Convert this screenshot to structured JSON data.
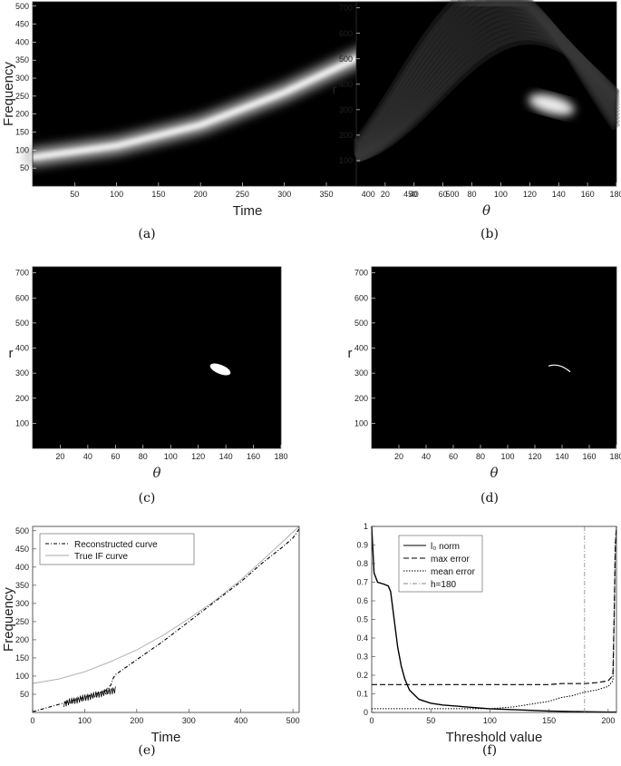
{
  "chart_data": [
    {
      "panel": "(a)",
      "type": "heatmap",
      "xlabel": "Time",
      "ylabel": "Frequency",
      "x_ticks": [
        50,
        100,
        150,
        200,
        250,
        300,
        350,
        400,
        450,
        500
      ],
      "y_ticks": [
        50,
        100,
        150,
        200,
        250,
        300,
        350,
        400,
        450,
        500
      ],
      "xlim": [
        0,
        512
      ],
      "ylim": [
        0,
        512
      ],
      "ridge": {
        "x": [
          0,
          100,
          200,
          300,
          400,
          512
        ],
        "y": [
          80,
          112,
          170,
          260,
          370,
          512
        ]
      },
      "colormap": "gray"
    },
    {
      "panel": "(b)",
      "type": "heatmap",
      "xlabel": "θ",
      "ylabel": "r",
      "x_ticks": [
        20,
        40,
        60,
        80,
        100,
        120,
        140,
        160,
        180
      ],
      "y_ticks": [
        100,
        200,
        300,
        400,
        500,
        600,
        700
      ],
      "xlim": [
        0,
        180
      ],
      "ylim": [
        0,
        724
      ],
      "peak": {
        "theta": 135,
        "r": 320
      },
      "colormap": "gray"
    },
    {
      "panel": "(c)",
      "type": "heatmap",
      "xlabel": "θ",
      "ylabel": "r",
      "x_ticks": [
        20,
        40,
        60,
        80,
        100,
        120,
        140,
        160,
        180
      ],
      "y_ticks": [
        100,
        200,
        300,
        400,
        500,
        600,
        700
      ],
      "xlim": [
        0,
        180
      ],
      "ylim": [
        0,
        724
      ],
      "blob": {
        "theta_range": [
          126,
          146
        ],
        "r_range": [
          300,
          330
        ]
      },
      "colormap": "gray"
    },
    {
      "panel": "(d)",
      "type": "heatmap",
      "xlabel": "θ",
      "ylabel": "r",
      "x_ticks": [
        20,
        40,
        60,
        80,
        100,
        120,
        140,
        160,
        180
      ],
      "y_ticks": [
        100,
        200,
        300,
        400,
        500,
        600,
        700
      ],
      "xlim": [
        0,
        180
      ],
      "ylim": [
        0,
        724
      ],
      "arc": {
        "theta_range": [
          130,
          146
        ],
        "r_range": [
          305,
          332
        ]
      },
      "colormap": "gray"
    },
    {
      "panel": "(e)",
      "type": "line",
      "xlabel": "Time",
      "ylabel": "Frequency",
      "x_ticks": [
        0,
        100,
        200,
        300,
        400,
        500
      ],
      "y_ticks": [
        50,
        100,
        150,
        200,
        250,
        300,
        350,
        400,
        450,
        500
      ],
      "xlim": [
        0,
        512
      ],
      "ylim": [
        0,
        512
      ],
      "legend_position": "top-left",
      "series": [
        {
          "name": "Reconstructed curve",
          "x": [
            0,
            20,
            40,
            60,
            80,
            100,
            120,
            140,
            150,
            155,
            160,
            170,
            180,
            200,
            250,
            300,
            350,
            400,
            440,
            480,
            500,
            512
          ],
          "y": [
            2,
            10,
            18,
            26,
            34,
            42,
            50,
            60,
            75,
            95,
            105,
            115,
            125,
            145,
            195,
            250,
            305,
            360,
            410,
            455,
            480,
            505
          ]
        },
        {
          "name": "True IF curve",
          "x": [
            0,
            50,
            100,
            150,
            200,
            250,
            300,
            350,
            400,
            450,
            512
          ],
          "y": [
            80,
            92,
            112,
            140,
            172,
            212,
            258,
            308,
            365,
            430,
            512
          ]
        }
      ]
    },
    {
      "panel": "(f)",
      "type": "line",
      "xlabel": "Threshold value",
      "ylabel": "",
      "x_ticks": [
        0,
        50,
        100,
        150,
        200
      ],
      "y_ticks": [
        0,
        0.1,
        0.2,
        0.3,
        0.4,
        0.5,
        0.6,
        0.7,
        0.8,
        0.9,
        1
      ],
      "xlim": [
        0,
        207
      ],
      "ylim": [
        0,
        1
      ],
      "legend_position": "top-left",
      "vline_x": 180,
      "series": [
        {
          "name": "l₀ norm",
          "x": [
            0,
            2,
            5,
            10,
            14,
            16,
            18,
            20,
            22,
            25,
            28,
            32,
            40,
            50,
            60,
            80,
            100,
            120,
            150,
            180,
            200,
            207
          ],
          "y": [
            1,
            0.75,
            0.7,
            0.69,
            0.68,
            0.65,
            0.55,
            0.45,
            0.35,
            0.25,
            0.18,
            0.12,
            0.07,
            0.05,
            0.04,
            0.03,
            0.02,
            0.015,
            0.008,
            0.004,
            0.002,
            0.002
          ]
        },
        {
          "name": "max error",
          "x": [
            0,
            100,
            150,
            160,
            180,
            190,
            200,
            204,
            205,
            206,
            207
          ],
          "y": [
            0.15,
            0.15,
            0.15,
            0.155,
            0.155,
            0.16,
            0.17,
            0.2,
            0.5,
            0.9,
            1
          ]
        },
        {
          "name": "mean error",
          "x": [
            0,
            50,
            100,
            110,
            120,
            130,
            140,
            150,
            160,
            170,
            180,
            190,
            200,
            204,
            205,
            206,
            207
          ],
          "y": [
            0.02,
            0.02,
            0.02,
            0.025,
            0.03,
            0.04,
            0.05,
            0.06,
            0.08,
            0.09,
            0.11,
            0.12,
            0.14,
            0.17,
            0.5,
            0.9,
            1
          ]
        },
        {
          "name": "h=180",
          "x": [
            180,
            180
          ],
          "y": [
            0,
            1
          ]
        }
      ]
    }
  ]
}
